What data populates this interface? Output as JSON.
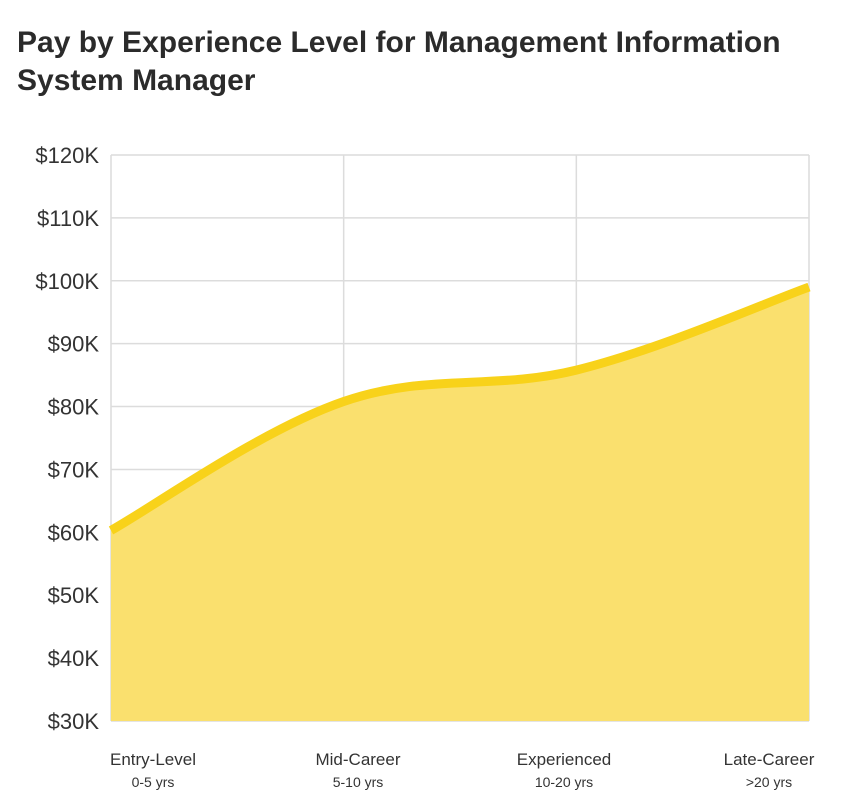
{
  "chart_data": {
    "type": "area",
    "title": "Pay by Experience Level for Management Information System Manager",
    "xlabel": "",
    "ylabel": "",
    "categories": [
      "Entry-Level",
      "Mid-Career",
      "Experienced",
      "Late-Career"
    ],
    "category_sublabels": [
      "0-5 yrs",
      "5-10 yrs",
      "10-20 yrs",
      ">20 yrs"
    ],
    "values": [
      60300,
      80800,
      85800,
      99000
    ],
    "ylim": [
      30000,
      120000
    ],
    "yticks": [
      30000,
      40000,
      50000,
      60000,
      70000,
      80000,
      90000,
      100000,
      110000,
      120000
    ],
    "ytick_labels": [
      "$30K",
      "$40K",
      "$50K",
      "$60K",
      "$70K",
      "$80K",
      "$90K",
      "$100K",
      "$110K",
      "$120K"
    ],
    "grid": true,
    "legend": "none",
    "colors": {
      "line": "#F8D21A",
      "fill": "#FAE06E",
      "grid": "#DCDCDC",
      "text": "#333333"
    }
  }
}
